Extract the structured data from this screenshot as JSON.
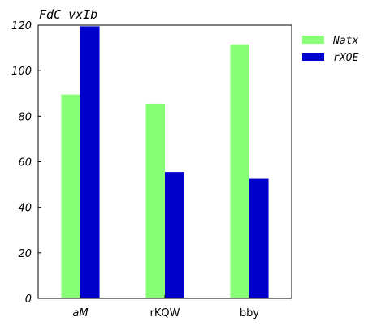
{
  "chart_data": {
    "type": "bar",
    "title": "FdC vxIb",
    "xlabel": "",
    "ylabel": "",
    "categories": [
      "aM",
      "rKQW",
      "bby"
    ],
    "category_italic": [
      true,
      false,
      false
    ],
    "series": [
      {
        "name": "Natx",
        "color": "#88ff77",
        "values": [
          89.5,
          85.5,
          111.5
        ]
      },
      {
        "name": "rXOE",
        "color": "#0000cc",
        "values": [
          119.5,
          55.5,
          52.5
        ]
      }
    ],
    "ylim": [
      0,
      120
    ],
    "yticks": [
      0,
      20,
      40,
      60,
      80,
      100,
      120
    ],
    "grid": false,
    "legend_position": "outside-top-right"
  }
}
